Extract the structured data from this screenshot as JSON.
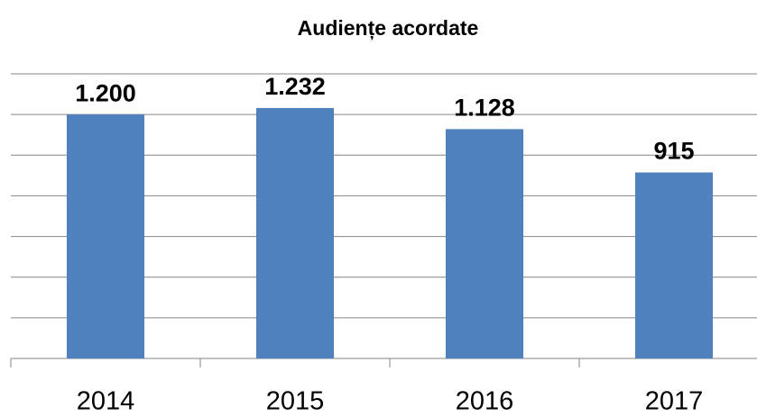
{
  "chart_data": {
    "type": "bar",
    "title": "Audiențe acordate",
    "categories": [
      "2014",
      "2015",
      "2016",
      "2017"
    ],
    "values": [
      1200,
      1232,
      1128,
      915
    ],
    "value_labels": [
      "1.200",
      "1.232",
      "1.128",
      "915"
    ],
    "color": "#4f81bd",
    "ylim": [
      0,
      1400
    ],
    "yticks": [
      0,
      200,
      400,
      600,
      800,
      1000,
      1200,
      1400
    ],
    "grid": true
  }
}
